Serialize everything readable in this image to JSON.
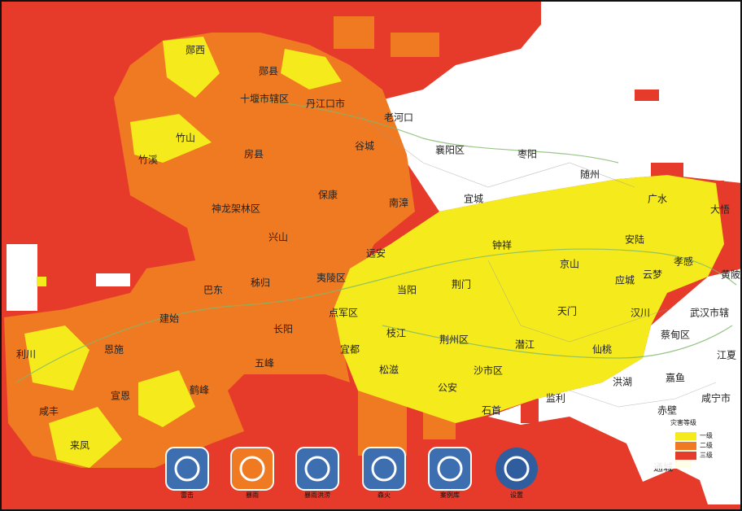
{
  "map": {
    "places": [
      "郧西",
      "郧县",
      "十堰市辖区",
      "丹江口市",
      "老河口",
      "竹山",
      "谷城",
      "襄阳区",
      "枣阳",
      "竹溪",
      "房县",
      "随州",
      "保康",
      "南漳",
      "宜城",
      "广水",
      "大悟",
      "神龙架林区",
      "兴山",
      "安陆",
      "远安",
      "钟祥",
      "孝感",
      "京山",
      "云梦",
      "应城",
      "巴东",
      "秭归",
      "夷陵区",
      "当阳",
      "荆门",
      "黄陂",
      "建始",
      "点军区",
      "天门",
      "汉川",
      "武汉市辖",
      "长阳",
      "枝江",
      "荆州区",
      "蔡甸区",
      "恩施",
      "利川",
      "宜都",
      "潜江",
      "仙桃",
      "江夏",
      "五峰",
      "松滋",
      "沙市区",
      "洪湖",
      "嘉鱼",
      "宣恩",
      "鹤峰",
      "公安",
      "监利",
      "咸宁市",
      "赤壁",
      "咸丰",
      "石首",
      "来凤",
      "通城"
    ],
    "legend": {
      "title": "灾害等级",
      "items": [
        "一级",
        "二级",
        "三级"
      ]
    },
    "toolbar": [
      "雷击",
      "暴雨",
      "暴雨洪涝",
      "森火",
      "案例库",
      "设置"
    ]
  }
}
